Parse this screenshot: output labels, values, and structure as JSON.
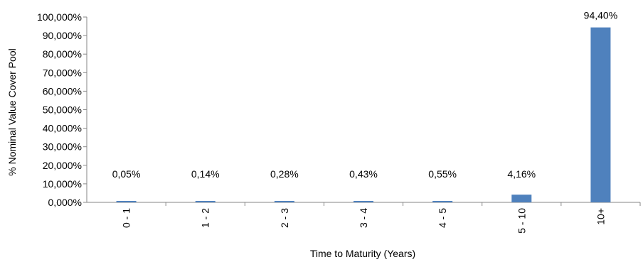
{
  "chart_data": {
    "type": "bar",
    "xlabel": "Time to Maturity (Years)",
    "ylabel": "% Nominal Value Cover Pool",
    "ylim": [
      0,
      100
    ],
    "y_ticks": [
      "0,000%",
      "10,000%",
      "20,000%",
      "30,000%",
      "40,000%",
      "50,000%",
      "60,000%",
      "70,000%",
      "80,000%",
      "90,000%",
      "100,000%"
    ],
    "categories": [
      "0 - 1",
      "1 - 2",
      "2 - 3",
      "3 - 4",
      "4 - 5",
      "5 - 10",
      "10+"
    ],
    "values": [
      0.05,
      0.14,
      0.28,
      0.43,
      0.55,
      4.16,
      94.4
    ],
    "data_labels": [
      "0,05%",
      "0,14%",
      "0,28%",
      "0,43%",
      "0,55%",
      "4,16%",
      "94,40%"
    ],
    "bar_color": "#4F81BD",
    "grid": false,
    "legend": "none"
  }
}
